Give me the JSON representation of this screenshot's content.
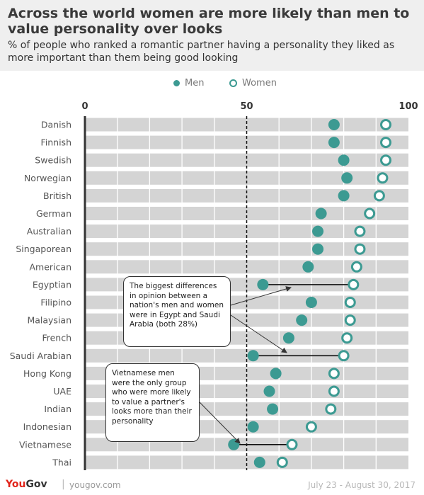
{
  "header": {
    "title": "Across the world women are more likely than men to value personality over looks",
    "subtitle": "% of people who ranked a romantic partner having a personality they liked as more important than them being good looking"
  },
  "legend": {
    "men": "Men",
    "women": "Women"
  },
  "colors": {
    "accent": "#3c9a92",
    "bar": "#d4d4d4",
    "header_bg": "#efefef"
  },
  "chart_data": {
    "type": "scatter",
    "variant": "dumbbell-dot",
    "xlim": [
      0,
      100
    ],
    "xticks": [
      "0",
      "50",
      "100"
    ],
    "reference_line": 50,
    "legend_position": "top",
    "categories": [
      "Danish",
      "Finnish",
      "Swedish",
      "Norwegian",
      "British",
      "German",
      "Australian",
      "Singaporean",
      "American",
      "Egyptian",
      "Filipino",
      "Malaysian",
      "French",
      "Saudi Arabian",
      "Hong Kong",
      "UAE",
      "Indian",
      "Indonesian",
      "Vietnamese",
      "Thai"
    ],
    "series": [
      {
        "name": "Men",
        "values": [
          77,
          77,
          80,
          81,
          80,
          73,
          72,
          72,
          69,
          55,
          70,
          67,
          63,
          52,
          59,
          57,
          58,
          52,
          46,
          54
        ]
      },
      {
        "name": "Women",
        "values": [
          93,
          93,
          93,
          92,
          91,
          88,
          85,
          85,
          84,
          83,
          82,
          82,
          81,
          80,
          77,
          77,
          76,
          70,
          64,
          61
        ]
      }
    ],
    "highlight_rows": [
      "Egyptian",
      "Saudi Arabian",
      "Vietnamese"
    ]
  },
  "annotations": {
    "callout1": "The biggest differences in opinion between a nation's men and women were in Egypt and Saudi Arabia (both 28%)",
    "callout2": "Vietnamese men were the only group who were more likely to value a partner's looks more than their personality"
  },
  "footer": {
    "logo_you": "You",
    "logo_gov": "Gov",
    "separator": "|",
    "url": "yougov.com",
    "date": "July 23 - August 30, 2017"
  }
}
